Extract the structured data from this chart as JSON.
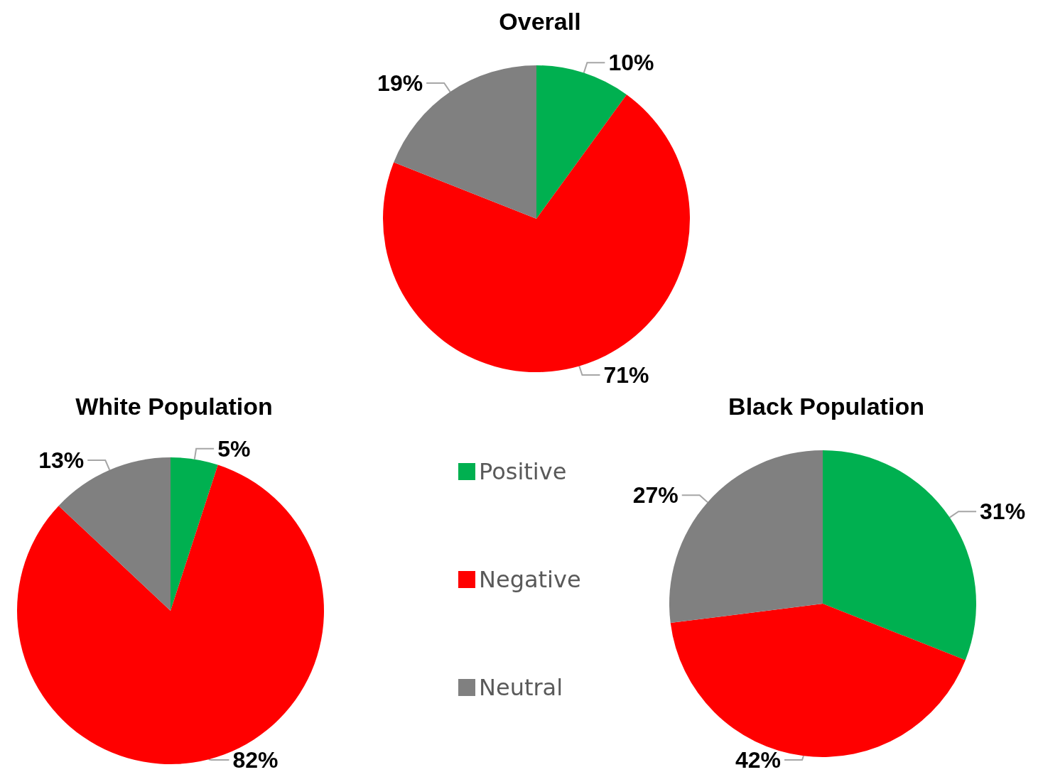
{
  "chart_data": [
    {
      "type": "pie",
      "title": "Overall",
      "categories": [
        null,
        null,
        null
      ],
      "values": [
        10,
        71,
        19
      ],
      "colors": [
        "#00b050",
        "#ff0000",
        "#808080"
      ],
      "value_labels": [
        "10%",
        "71%",
        "19%"
      ],
      "legend": false
    },
    {
      "type": "pie",
      "title": "White Population",
      "categories": [
        "Positive",
        "Negative",
        "Neutral"
      ],
      "values": [
        5,
        82,
        13
      ],
      "colors": [
        "#00b050",
        "#ff0000",
        "#808080"
      ],
      "value_labels": [
        "5%",
        "82%",
        "13%"
      ],
      "legend": "right"
    },
    {
      "type": "pie",
      "title": "Black Population",
      "categories": [
        null,
        null,
        null
      ],
      "values": [
        31,
        42,
        27
      ],
      "colors": [
        "#00b050",
        "#ff0000",
        "#808080"
      ],
      "value_labels": [
        "31%",
        "42%",
        "27%"
      ],
      "legend": false
    }
  ]
}
